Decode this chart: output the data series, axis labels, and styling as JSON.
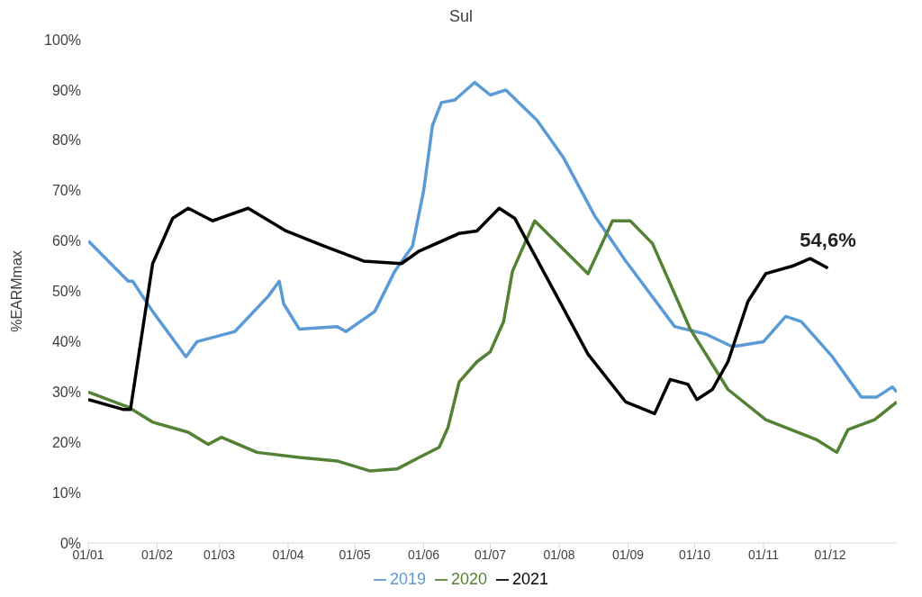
{
  "chart_data": {
    "type": "line",
    "title": "Sul",
    "ylabel": "%EARMmax",
    "xlim": [
      "--01-01",
      "--12-31"
    ],
    "xticks": [
      {
        "value": "--01-01",
        "label": "01/01"
      },
      {
        "value": "--02-01",
        "label": "01/02"
      },
      {
        "value": "--03-01",
        "label": "01/03"
      },
      {
        "value": "--04-01",
        "label": "01/04"
      },
      {
        "value": "--05-01",
        "label": "01/05"
      },
      {
        "value": "--06-01",
        "label": "01/06"
      },
      {
        "value": "--07-01",
        "label": "01/07"
      },
      {
        "value": "--08-01",
        "label": "01/08"
      },
      {
        "value": "--09-01",
        "label": "01/09"
      },
      {
        "value": "--10-01",
        "label": "01/10"
      },
      {
        "value": "--11-01",
        "label": "01/11"
      },
      {
        "value": "--12-01",
        "label": "01/12"
      }
    ],
    "ylim": [
      0,
      100
    ],
    "yticks": [
      {
        "value": 0,
        "label": "0%"
      },
      {
        "value": 10,
        "label": "10%"
      },
      {
        "value": 20,
        "label": "20%"
      },
      {
        "value": 30,
        "label": "30%"
      },
      {
        "value": 40,
        "label": "40%"
      },
      {
        "value": 50,
        "label": "50%"
      },
      {
        "value": 60,
        "label": "60%"
      },
      {
        "value": 70,
        "label": "70%"
      },
      {
        "value": 80,
        "label": "80%"
      },
      {
        "value": 90,
        "label": "90%"
      },
      {
        "value": 100,
        "label": "100%"
      }
    ],
    "grid": false,
    "legend": "bottom",
    "marker": "none",
    "line_style": "solid",
    "annotations": [
      {
        "text": "54,6%",
        "x": "--11-30",
        "y": 54.6
      }
    ],
    "series": [
      {
        "name": "2019",
        "color": "#5b9bd5",
        "x": [
          "--01-01",
          "--01-19",
          "--01-21",
          "--01-30",
          "--02-14",
          "--02-19",
          "--03-08",
          "--03-23",
          "--03-28",
          "--03-30",
          "--04-06",
          "--04-23",
          "--04-27",
          "--05-10",
          "--05-19",
          "--05-27",
          "--06-01",
          "--06-05",
          "--06-09",
          "--06-15",
          "--06-24",
          "--07-01",
          "--07-08",
          "--07-22",
          "--08-03",
          "--08-17",
          "--08-31",
          "--09-22",
          "--10-06",
          "--10-18",
          "--11-01",
          "--11-11",
          "--11-18",
          "--12-02",
          "--12-15",
          "--12-22",
          "--12-29",
          "--12-31"
        ],
        "values": [
          60,
          52,
          52,
          46,
          37,
          40,
          42,
          49,
          52,
          47.5,
          42.5,
          43,
          42,
          46,
          54,
          59,
          70,
          83,
          87.5,
          88,
          91.5,
          89,
          90,
          84,
          76.5,
          65,
          56,
          43,
          41.5,
          39,
          40,
          45,
          44,
          37,
          29,
          29,
          31,
          30
        ]
      },
      {
        "name": "2020",
        "color": "#548235",
        "x": [
          "--01-01",
          "--01-19",
          "--01-30",
          "--02-15",
          "--02-24",
          "--03-02",
          "--03-18",
          "--04-06",
          "--04-23",
          "--05-08",
          "--05-20",
          "--05-30",
          "--06-08",
          "--06-12",
          "--06-17",
          "--06-25",
          "--07-01",
          "--07-07",
          "--07-11",
          "--07-21",
          "--08-14",
          "--08-25",
          "--09-02",
          "--09-12",
          "--09-29",
          "--10-16",
          "--11-02",
          "--11-25",
          "--12-04",
          "--12-09",
          "--12-21",
          "--12-31"
        ],
        "values": [
          30,
          27,
          24,
          22,
          19.6,
          21,
          18,
          17,
          16.3,
          14.3,
          14.7,
          17,
          19,
          23,
          32,
          36,
          38,
          44,
          54,
          64,
          53.5,
          64,
          64,
          59.5,
          42.5,
          30.5,
          24.5,
          20.5,
          18,
          22.5,
          24.5,
          28
        ]
      },
      {
        "name": "2021",
        "color": "#000000",
        "x": [
          "--01-01",
          "--01-17",
          "--01-20",
          "--01-30",
          "--02-08",
          "--02-15",
          "--02-26",
          "--03-14",
          "--03-31",
          "--04-17",
          "--05-05",
          "--05-22",
          "--05-30",
          "--06-17",
          "--06-25",
          "--07-05",
          "--07-12",
          "--07-31",
          "--08-14",
          "--08-31",
          "--09-13",
          "--09-20",
          "--09-28",
          "--10-02",
          "--10-09",
          "--10-16",
          "--10-25",
          "--11-02",
          "--11-14",
          "--11-22",
          "--11-30"
        ],
        "values": [
          28.5,
          26.5,
          26.5,
          55.5,
          64.5,
          66.5,
          64,
          66.5,
          62,
          59,
          56,
          55.5,
          58,
          61.5,
          62,
          66.5,
          64.5,
          49,
          37.5,
          28,
          25.7,
          32.5,
          31.5,
          28.5,
          30.5,
          36,
          48,
          53.5,
          55,
          56.5,
          54.6
        ]
      }
    ]
  }
}
